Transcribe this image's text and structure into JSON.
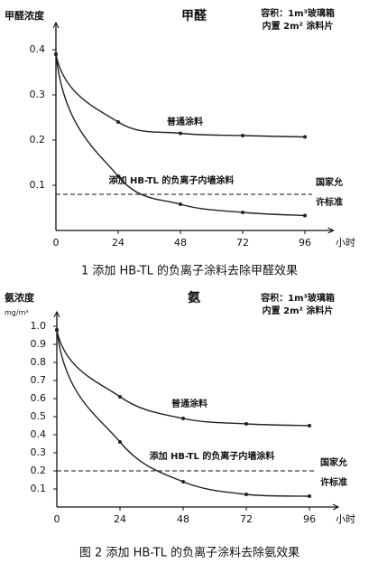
{
  "chart_data": [
    {
      "type": "line",
      "title": "甲醛",
      "y_label": "甲醛浓度",
      "x_label": "小时",
      "annotation": [
        "容积：1m³玻璃箱",
        "内置 2m² 涂料片"
      ],
      "x": [
        0,
        24,
        48,
        72,
        96
      ],
      "series": [
        {
          "name": "普通涂料",
          "color": "#222222",
          "values": [
            0.39,
            0.24,
            0.215,
            0.21,
            0.207
          ]
        },
        {
          "name": "添加 HB-TL 的负离子内墙涂料",
          "color": "#222222",
          "values": [
            0.39,
            0.12,
            0.058,
            0.04,
            0.033
          ]
        }
      ],
      "reference": {
        "value": 0.08,
        "label": [
          "国家允",
          "许标准"
        ]
      },
      "xlim": [
        0,
        107
      ],
      "ylim": [
        0,
        0.46
      ],
      "xticks": [
        0,
        24,
        48,
        72,
        96
      ],
      "yticks": [
        0.1,
        0.2,
        0.3,
        0.4
      ],
      "caption": "1  添加 HB-TL 的负离子涂料去除甲醛效果"
    },
    {
      "type": "line",
      "title": "氨",
      "y_label": "氨浓度",
      "y_unit": "mg/m³",
      "x_label": "小时",
      "annotation": [
        "容积：1m³玻璃箱",
        "内置 2m² 涂料片"
      ],
      "x": [
        0,
        24,
        48,
        72,
        96
      ],
      "series": [
        {
          "name": "普通涂料",
          "color": "#222222",
          "values": [
            0.98,
            0.61,
            0.49,
            0.46,
            0.45
          ]
        },
        {
          "name": "添加 HB-TL 的负离子内墙涂料",
          "color": "#222222",
          "values": [
            0.98,
            0.36,
            0.14,
            0.07,
            0.06
          ]
        }
      ],
      "reference": {
        "value": 0.2,
        "label": [
          "国家允",
          "许标准"
        ]
      },
      "xlim": [
        0,
        107
      ],
      "ylim": [
        0,
        1.08
      ],
      "xticks": [
        0,
        24,
        48,
        72,
        96
      ],
      "yticks": [
        0.1,
        0.2,
        0.3,
        0.4,
        0.5,
        0.6,
        0.7,
        0.8,
        0.9,
        {
          "value": 1,
          "label": "1.0"
        }
      ],
      "caption": "图 2  添加 HB-TL 的负离子涂料去除氨效果"
    }
  ]
}
